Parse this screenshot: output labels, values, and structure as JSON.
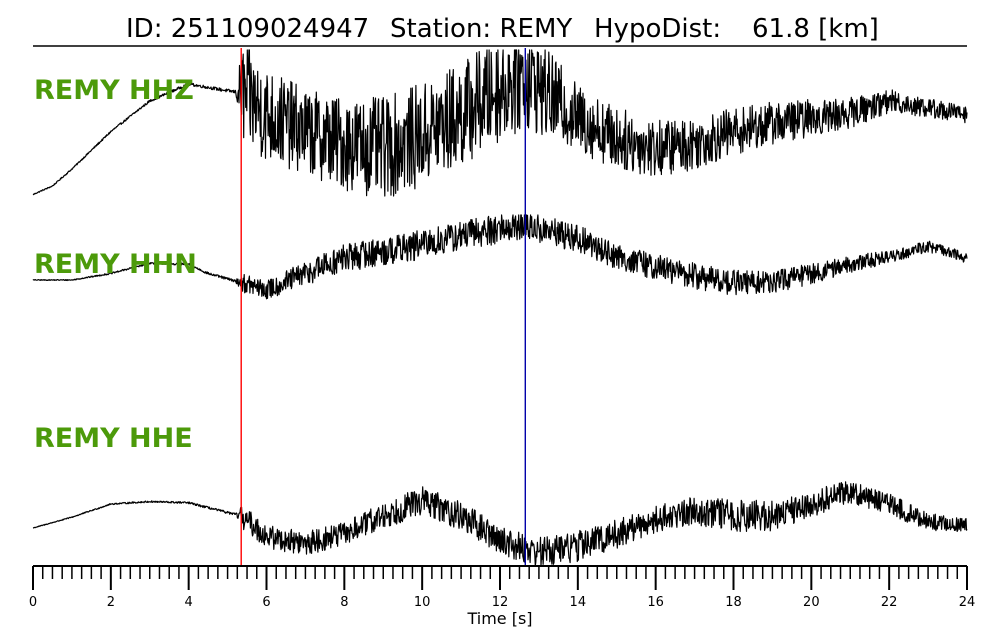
{
  "title": {
    "id_label": "ID: 251109024947",
    "station_label": "Station: REMY",
    "hypodist_label": "HypoDist:",
    "hypodist_value": "61.8 [km]"
  },
  "colors": {
    "label": "#4c9a0a",
    "trace": "#000000",
    "p_pick": "#ff0000",
    "s_pick": "#0000aa"
  },
  "chart_data": {
    "type": "line",
    "xlabel": "Time [s]",
    "xlim": [
      0,
      24
    ],
    "major_ticks": [
      0,
      2,
      4,
      6,
      8,
      10,
      12,
      14,
      16,
      18,
      20,
      22,
      24
    ],
    "minor_tick_step": 0.25,
    "picks": [
      {
        "name": "P",
        "time": 5.35,
        "color": "#ff0000"
      },
      {
        "name": "S",
        "time": 12.65,
        "color": "#0000aa"
      }
    ],
    "series": [
      {
        "name": "REMY HHZ",
        "envelope": [
          [
            0,
            0.15
          ],
          [
            0.5,
            0.2
          ],
          [
            1,
            0.3
          ],
          [
            2,
            0.52
          ],
          [
            3,
            0.7
          ],
          [
            4,
            0.8
          ],
          [
            4.5,
            0.78
          ],
          [
            5,
            0.76
          ],
          [
            5.35,
            0.75
          ],
          [
            6,
            0.62
          ],
          [
            7,
            0.52
          ],
          [
            8,
            0.45
          ],
          [
            9,
            0.42
          ],
          [
            10,
            0.5
          ],
          [
            11,
            0.62
          ],
          [
            12,
            0.78
          ],
          [
            12.65,
            0.85
          ],
          [
            13,
            0.78
          ],
          [
            14,
            0.6
          ],
          [
            15,
            0.48
          ],
          [
            16,
            0.42
          ],
          [
            17,
            0.45
          ],
          [
            18,
            0.52
          ],
          [
            19,
            0.57
          ],
          [
            20,
            0.6
          ],
          [
            21,
            0.63
          ],
          [
            22,
            0.7
          ],
          [
            23,
            0.66
          ],
          [
            24,
            0.62
          ]
        ],
        "noise": [
          [
            0,
            0.003
          ],
          [
            5.2,
            0.01
          ],
          [
            5.4,
            0.3
          ],
          [
            7,
            0.25
          ],
          [
            9,
            0.3
          ],
          [
            12.5,
            0.32
          ],
          [
            14,
            0.2
          ],
          [
            16,
            0.17
          ],
          [
            20,
            0.11
          ],
          [
            22,
            0.07
          ],
          [
            24,
            0.05
          ]
        ]
      },
      {
        "name": "REMY HHN",
        "envelope": [
          [
            0,
            0.5
          ],
          [
            1,
            0.5
          ],
          [
            2,
            0.55
          ],
          [
            3,
            0.63
          ],
          [
            4,
            0.62
          ],
          [
            4.5,
            0.55
          ],
          [
            5.35,
            0.48
          ],
          [
            6,
            0.42
          ],
          [
            7,
            0.55
          ],
          [
            8,
            0.67
          ],
          [
            9,
            0.72
          ],
          [
            10,
            0.77
          ],
          [
            11,
            0.84
          ],
          [
            12,
            0.9
          ],
          [
            12.65,
            0.92
          ],
          [
            13,
            0.89
          ],
          [
            14,
            0.82
          ],
          [
            15,
            0.68
          ],
          [
            16,
            0.6
          ],
          [
            17,
            0.53
          ],
          [
            18,
            0.48
          ],
          [
            19,
            0.48
          ],
          [
            20,
            0.55
          ],
          [
            21,
            0.62
          ],
          [
            22,
            0.68
          ],
          [
            23,
            0.76
          ],
          [
            24,
            0.67
          ]
        ],
        "noise": [
          [
            0,
            0.003
          ],
          [
            5.2,
            0.01
          ],
          [
            5.4,
            0.07
          ],
          [
            8,
            0.11
          ],
          [
            12,
            0.12
          ],
          [
            13.5,
            0.11
          ],
          [
            15,
            0.1
          ],
          [
            18,
            0.1
          ],
          [
            20,
            0.08
          ],
          [
            22,
            0.05
          ],
          [
            24,
            0.04
          ]
        ]
      },
      {
        "name": "REMY HHE",
        "envelope": [
          [
            0,
            0.35
          ],
          [
            1,
            0.44
          ],
          [
            2,
            0.55
          ],
          [
            3,
            0.57
          ],
          [
            4,
            0.56
          ],
          [
            5.35,
            0.45
          ],
          [
            6,
            0.28
          ],
          [
            7,
            0.22
          ],
          [
            8,
            0.3
          ],
          [
            9,
            0.45
          ],
          [
            10,
            0.58
          ],
          [
            11,
            0.45
          ],
          [
            12,
            0.25
          ],
          [
            12.65,
            0.18
          ],
          [
            13,
            0.15
          ],
          [
            14,
            0.2
          ],
          [
            15,
            0.3
          ],
          [
            16,
            0.42
          ],
          [
            17,
            0.5
          ],
          [
            18,
            0.45
          ],
          [
            19,
            0.45
          ],
          [
            20,
            0.55
          ],
          [
            21,
            0.66
          ],
          [
            22,
            0.55
          ],
          [
            23,
            0.4
          ],
          [
            24,
            0.37
          ]
        ],
        "noise": [
          [
            0,
            0.003
          ],
          [
            5.2,
            0.01
          ],
          [
            5.4,
            0.1
          ],
          [
            8,
            0.1
          ],
          [
            10,
            0.12
          ],
          [
            12,
            0.12
          ],
          [
            14,
            0.13
          ],
          [
            16,
            0.11
          ],
          [
            18,
            0.14
          ],
          [
            20,
            0.11
          ],
          [
            22,
            0.09
          ],
          [
            24,
            0.06
          ]
        ]
      }
    ]
  }
}
